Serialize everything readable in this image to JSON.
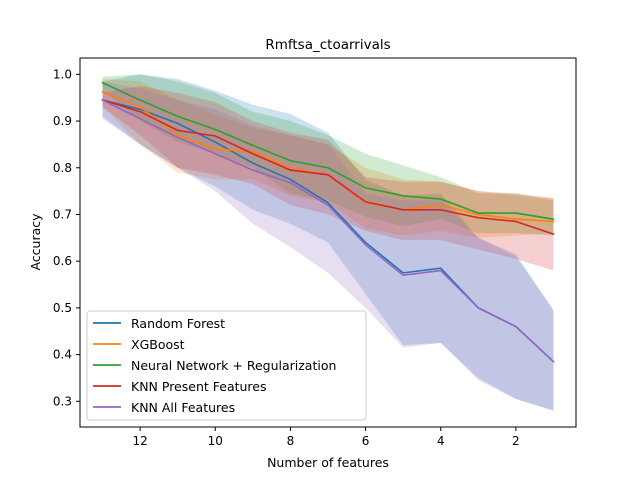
{
  "chart_data": {
    "type": "line",
    "title": "Rmftsa_ctoarrivals",
    "xlabel": "Number of features",
    "ylabel": "Accuracy",
    "x_inverted": true,
    "xlim": [
      13.6,
      0.4
    ],
    "ylim": [
      0.245,
      1.035
    ],
    "xticks": [
      12,
      10,
      8,
      6,
      4,
      2
    ],
    "yticks": [
      0.3,
      0.4,
      0.5,
      0.6,
      0.7,
      0.8,
      0.9,
      1.0
    ],
    "xtick_labels": [
      "12",
      "10",
      "8",
      "6",
      "4",
      "2"
    ],
    "ytick_labels": [
      "0.3",
      "0.4",
      "0.5",
      "0.6",
      "0.7",
      "0.8",
      "0.9",
      "1.0"
    ],
    "legend_position": "lower-left",
    "grid": false,
    "x": [
      13,
      12,
      11,
      10,
      9,
      8,
      7,
      6,
      5,
      4,
      3,
      2,
      1
    ],
    "series": [
      {
        "name": "Random Forest",
        "color": "#1f77b4",
        "values": [
          0.945,
          0.925,
          0.895,
          0.855,
          0.81,
          0.775,
          0.725,
          0.64,
          0.575,
          0.585,
          0.5,
          0.46,
          0.385
        ],
        "band_upper": [
          0.985,
          1.0,
          0.99,
          0.965,
          0.935,
          0.915,
          0.875,
          0.775,
          0.74,
          0.745,
          0.65,
          0.615,
          0.495
        ],
        "band_lower": [
          0.91,
          0.85,
          0.8,
          0.76,
          0.71,
          0.68,
          0.64,
          0.53,
          0.42,
          0.425,
          0.35,
          0.305,
          0.28
        ]
      },
      {
        "name": "XGBoost",
        "color": "#ff7f0e",
        "values": [
          0.962,
          0.93,
          0.87,
          0.84,
          0.835,
          0.8,
          0.785,
          0.725,
          0.71,
          0.72,
          0.7,
          0.69,
          0.685
        ],
        "band_upper": [
          0.99,
          0.985,
          0.945,
          0.915,
          0.885,
          0.87,
          0.85,
          0.8,
          0.775,
          0.77,
          0.75,
          0.74,
          0.735
        ],
        "band_lower": [
          0.93,
          0.85,
          0.79,
          0.775,
          0.775,
          0.74,
          0.725,
          0.67,
          0.655,
          0.665,
          0.65,
          0.655,
          0.66
        ]
      },
      {
        "name": "Neural Network + Regularization",
        "color": "#2ca02c",
        "values": [
          0.982,
          0.945,
          0.91,
          0.882,
          0.848,
          0.815,
          0.8,
          0.757,
          0.74,
          0.733,
          0.703,
          0.703,
          0.69
        ],
        "band_upper": [
          0.995,
          1.0,
          0.985,
          0.96,
          0.92,
          0.9,
          0.87,
          0.83,
          0.805,
          0.78,
          0.745,
          0.745,
          0.73
        ],
        "band_lower": [
          0.965,
          0.9,
          0.855,
          0.83,
          0.8,
          0.745,
          0.73,
          0.695,
          0.675,
          0.69,
          0.66,
          0.66,
          0.655
        ]
      },
      {
        "name": "KNN Present Features",
        "color": "#d62728",
        "values": [
          0.945,
          0.92,
          0.88,
          0.868,
          0.83,
          0.795,
          0.785,
          0.727,
          0.71,
          0.71,
          0.693,
          0.685,
          0.658
        ],
        "band_upper": [
          0.96,
          0.975,
          0.96,
          0.94,
          0.9,
          0.875,
          0.86,
          0.78,
          0.77,
          0.77,
          0.75,
          0.745,
          0.735
        ],
        "band_lower": [
          0.93,
          0.87,
          0.8,
          0.785,
          0.765,
          0.72,
          0.7,
          0.665,
          0.645,
          0.645,
          0.625,
          0.605,
          0.58
        ]
      },
      {
        "name": "KNN All Features",
        "color": "#9467bd",
        "values": [
          0.945,
          0.905,
          0.865,
          0.83,
          0.795,
          0.768,
          0.72,
          0.635,
          0.57,
          0.58,
          0.5,
          0.46,
          0.385
        ],
        "band_upper": [
          0.985,
          0.97,
          0.945,
          0.925,
          0.89,
          0.87,
          0.85,
          0.745,
          0.73,
          0.73,
          0.65,
          0.61,
          0.495
        ],
        "band_lower": [
          0.905,
          0.85,
          0.8,
          0.75,
          0.68,
          0.63,
          0.575,
          0.5,
          0.415,
          0.425,
          0.345,
          0.305,
          0.28
        ]
      }
    ]
  }
}
